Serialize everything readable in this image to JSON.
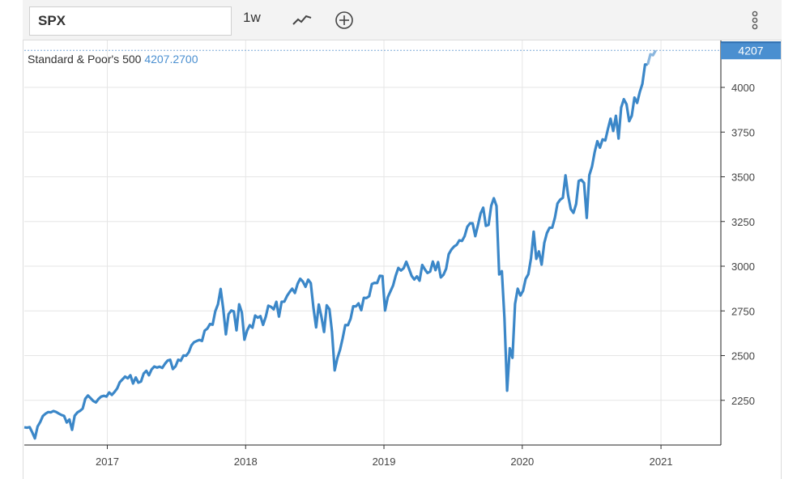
{
  "toolbar": {
    "symbol_value": "SPX",
    "period_label": "1w",
    "chart_type_icon": "line-chart-icon",
    "compare_icon": "plus-circle-icon",
    "menu_icon": "vertical-dots-icon"
  },
  "legend": {
    "name": "Standard & Poor's 500",
    "value": "4207.2700"
  },
  "last_price_badge": "4207",
  "colors": {
    "line": "#3b87c8",
    "badge": "#4a8fd0",
    "grid": "#e6e6e6"
  },
  "chart_data": {
    "type": "line",
    "series": [
      {
        "name": "Standard & Poor's 500",
        "x_start": "2016-05-27",
        "step": "1w",
        "values": [
          2099,
          2097,
          2100,
          2071,
          2037,
          2103,
          2129,
          2162,
          2175,
          2184,
          2183,
          2190,
          2185,
          2176,
          2168,
          2163,
          2126,
          2143,
          2085,
          2164,
          2182,
          2191,
          2204,
          2259,
          2277,
          2262,
          2246,
          2238,
          2258,
          2271,
          2275,
          2271,
          2294,
          2280,
          2297,
          2316,
          2351,
          2367,
          2383,
          2373,
          2390,
          2344,
          2378,
          2349,
          2355,
          2400,
          2415,
          2390,
          2423,
          2439,
          2433,
          2438,
          2431,
          2454,
          2472,
          2477,
          2425,
          2440,
          2477,
          2471,
          2501,
          2499,
          2519,
          2557,
          2575,
          2582,
          2588,
          2582,
          2640,
          2651,
          2677,
          2673,
          2748,
          2787,
          2873,
          2762,
          2619,
          2732,
          2752,
          2747,
          2641,
          2787,
          2741,
          2589,
          2640,
          2670,
          2656,
          2724,
          2712,
          2721,
          2672,
          2717,
          2779,
          2773,
          2759,
          2801,
          2718,
          2801,
          2802,
          2833,
          2855,
          2874,
          2850,
          2901,
          2930,
          2914,
          2885,
          2925,
          2905,
          2767,
          2658,
          2786,
          2718,
          2632,
          2781,
          2760,
          2633,
          2417,
          2485,
          2532,
          2596,
          2671,
          2670,
          2707,
          2776,
          2775,
          2792,
          2754,
          2823,
          2822,
          2832,
          2900,
          2907,
          2906,
          2946,
          2945,
          2752,
          2826,
          2859,
          2892,
          2946,
          2990,
          2976,
          2989,
          3025,
          2987,
          2946,
          2926,
          2943,
          2919,
          3007,
          2982,
          2962,
          2970,
          3026,
          2978,
          3023,
          2937,
          2952,
          2986,
          3067,
          3093,
          3110,
          3120,
          3145,
          3141,
          3169,
          3221,
          3240,
          3240,
          3168,
          3230,
          3295,
          3327,
          3226,
          3231,
          3338,
          3380,
          3337,
          2954,
          2972,
          2711,
          2304,
          2541,
          2488,
          2789,
          2874,
          2836,
          2863,
          2929,
          2955,
          3044,
          3193,
          3041,
          3083,
          3009,
          3130,
          3185,
          3215,
          3216,
          3271,
          3351,
          3372,
          3383,
          3508,
          3397,
          3319,
          3298,
          3348,
          3477,
          3483,
          3465,
          3270,
          3509,
          3557,
          3638,
          3699,
          3663,
          3709,
          3703,
          3768,
          3825,
          3756,
          3841,
          3714,
          3887,
          3934,
          3906,
          3811,
          3841,
          3943,
          3913,
          3974,
          4020,
          4128,
          4128,
          4185,
          4180,
          4207
        ]
      }
    ],
    "x_ticks": [
      "2017",
      "2018",
      "2019",
      "2020",
      "2021"
    ],
    "x_tick_dates": [
      "2017-01-01",
      "2018-01-01",
      "2019-01-01",
      "2020-01-01",
      "2021-01-01"
    ],
    "y_ticks": [
      2250,
      2500,
      2750,
      3000,
      3250,
      3500,
      3750,
      4000
    ],
    "ylim": [
      2000,
      4250
    ],
    "xlim": [
      "2016-05-27",
      "2021-06-08"
    ],
    "grid": true,
    "last_value_marker": 4207
  }
}
